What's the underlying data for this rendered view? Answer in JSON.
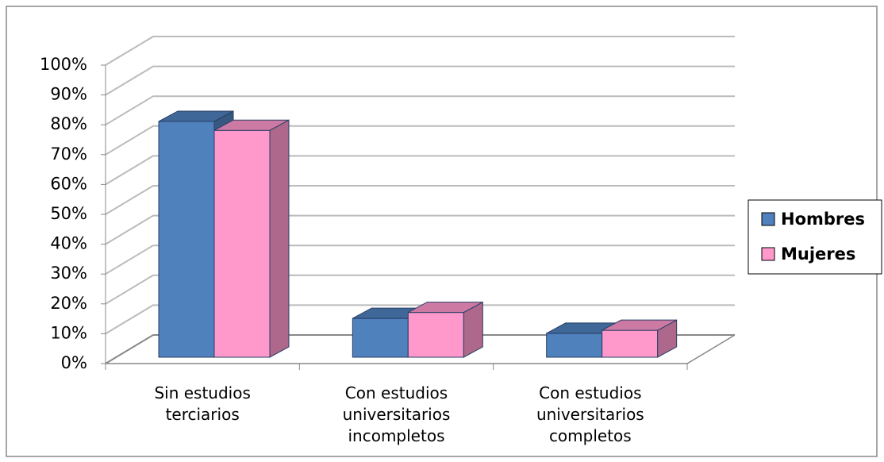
{
  "chart_data": {
    "type": "bar3d",
    "categories": [
      "Sin estudios terciarios",
      "Con estudios universitarios incompletos",
      "Con estudios universitarios completos"
    ],
    "series": [
      {
        "name": "Hombres",
        "color": "#4f81bd",
        "values": [
          79,
          13,
          8
        ]
      },
      {
        "name": "Mujeres",
        "color": "#ff99cc",
        "values": [
          76,
          15,
          9
        ]
      }
    ],
    "ylim": [
      0,
      100
    ],
    "yticks": [
      {
        "value": 0,
        "label": "0%"
      },
      {
        "value": 10,
        "label": "10%"
      },
      {
        "value": 20,
        "label": "20%"
      },
      {
        "value": 30,
        "label": "30%"
      },
      {
        "value": 40,
        "label": "40%"
      },
      {
        "value": 50,
        "label": "50%"
      },
      {
        "value": 60,
        "label": "60%"
      },
      {
        "value": 70,
        "label": "70%"
      },
      {
        "value": 80,
        "label": "80%"
      },
      {
        "value": 90,
        "label": "90%"
      },
      {
        "value": 100,
        "label": "100%"
      }
    ],
    "grid": true,
    "legend": "right"
  }
}
